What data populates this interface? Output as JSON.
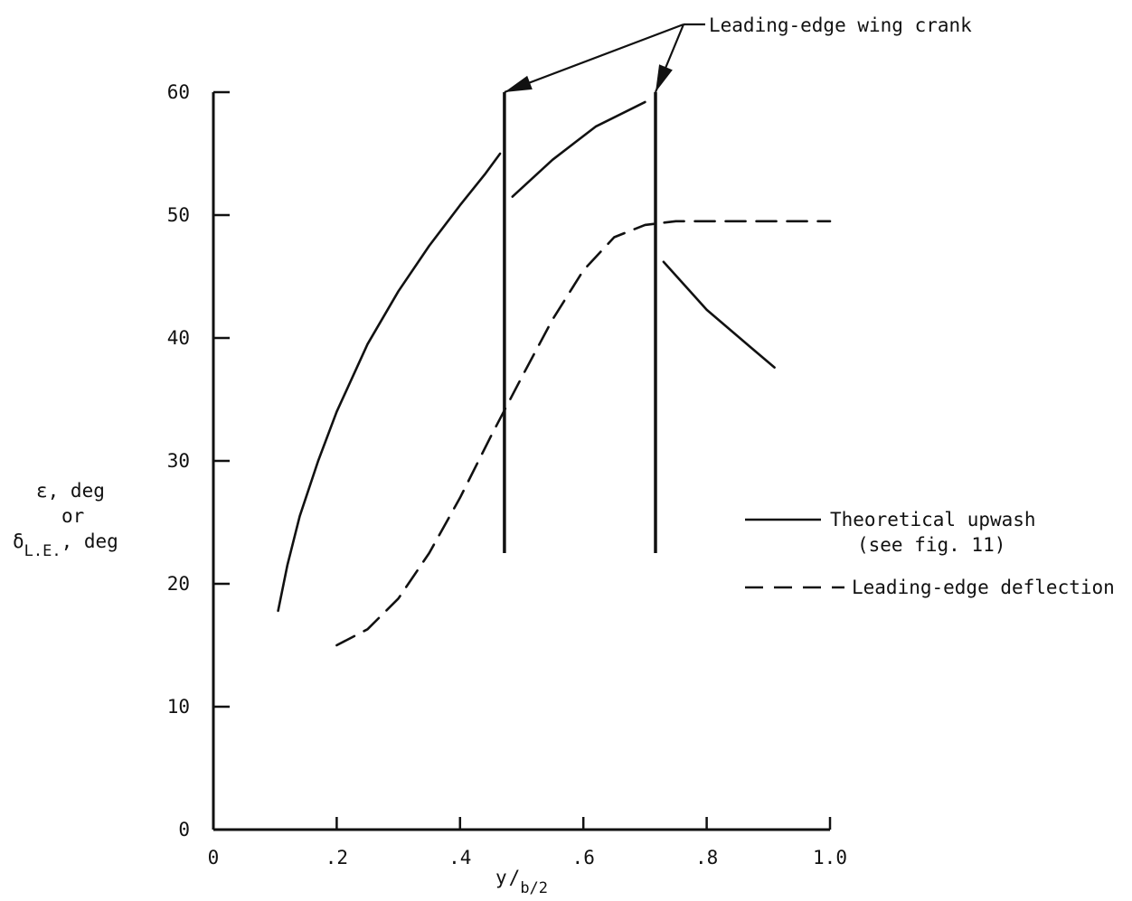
{
  "chart_data": {
    "type": "line",
    "xlabel": {
      "main": "y",
      "sub": "b/2"
    },
    "ylabel": {
      "line1": "ε, deg",
      "line2": "or",
      "line3_sym": "δ",
      "line3_sub": "L.E.",
      "line3_tail": ", deg"
    },
    "xlim": [
      0,
      1.0
    ],
    "ylim": [
      0,
      60
    ],
    "x_ticks": [
      {
        "value": 0,
        "label": "0"
      },
      {
        "value": 0.2,
        "label": ".2"
      },
      {
        "value": 0.4,
        "label": ".4"
      },
      {
        "value": 0.6,
        "label": ".6"
      },
      {
        "value": 0.8,
        "label": ".8"
      },
      {
        "value": 1.0,
        "label": "1.0"
      }
    ],
    "y_ticks": [
      {
        "value": 0,
        "label": "0"
      },
      {
        "value": 10,
        "label": "10"
      },
      {
        "value": 20,
        "label": "20"
      },
      {
        "value": 30,
        "label": "30"
      },
      {
        "value": 40,
        "label": "40"
      },
      {
        "value": 50,
        "label": "50"
      },
      {
        "value": 60,
        "label": "60"
      }
    ],
    "grid": false,
    "legend_position": "right",
    "series": [
      {
        "name": "Theoretical upwash",
        "name_line2": "(see fig. 11)",
        "style": "solid",
        "segments": [
          [
            [
              0.105,
              17.8
            ],
            [
              0.12,
              21.5
            ],
            [
              0.14,
              25.5
            ],
            [
              0.17,
              30
            ],
            [
              0.2,
              34
            ],
            [
              0.25,
              39.5
            ],
            [
              0.3,
              43.8
            ],
            [
              0.35,
              47.5
            ],
            [
              0.4,
              50.8
            ],
            [
              0.44,
              53.3
            ],
            [
              0.465,
              55
            ]
          ],
          [
            [
              0.485,
              51.5
            ],
            [
              0.55,
              54.5
            ],
            [
              0.62,
              57.2
            ],
            [
              0.7,
              59.2
            ]
          ],
          [
            [
              0.73,
              46.2
            ],
            [
              0.8,
              42.3
            ],
            [
              0.87,
              39.3
            ],
            [
              0.91,
              37.6
            ]
          ]
        ]
      },
      {
        "name": "Leading-edge deflection",
        "style": "dashed",
        "segments": [
          [
            [
              0.2,
              15
            ],
            [
              0.25,
              16.3
            ],
            [
              0.3,
              18.8
            ],
            [
              0.35,
              22.5
            ],
            [
              0.4,
              27
            ],
            [
              0.45,
              32
            ],
            [
              0.5,
              36.8
            ],
            [
              0.55,
              41.5
            ],
            [
              0.6,
              45.5
            ],
            [
              0.65,
              48.2
            ],
            [
              0.7,
              49.2
            ],
            [
              0.75,
              49.5
            ],
            [
              0.8,
              49.5
            ],
            [
              0.9,
              49.5
            ],
            [
              1.0,
              49.5
            ]
          ]
        ]
      }
    ],
    "reference_lines": [
      {
        "x": 0.472,
        "y_from": 22.5,
        "y_to": 60
      },
      {
        "x": 0.717,
        "y_from": 22.5,
        "y_to": 60
      }
    ],
    "annotation": {
      "text": "Leading-edge wing crank",
      "targets": [
        {
          "x": 0.472,
          "y": 60
        },
        {
          "x": 0.717,
          "y": 60
        }
      ]
    }
  }
}
